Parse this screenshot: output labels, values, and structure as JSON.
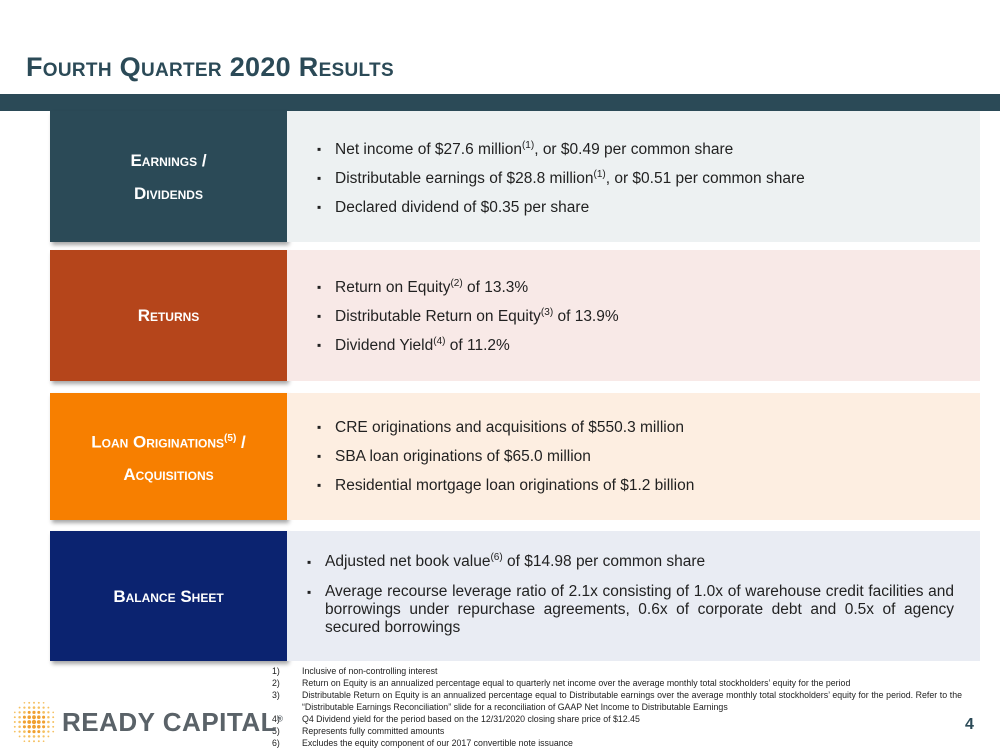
{
  "title": "Fourth Quarter 2020 Results",
  "sections": [
    {
      "label_line1": "Earnings /",
      "label_line2": "Dividends",
      "bullets": [
        {
          "pre": "Net income of $27.6 million",
          "sup": "(1)",
          "post": ", or $0.49 per common share"
        },
        {
          "pre": "Distributable earnings of $28.8 million",
          "sup": "(1)",
          "post": ", or $0.51 per common share"
        },
        {
          "pre": "Declared dividend of $0.35 per share",
          "sup": "",
          "post": ""
        }
      ]
    },
    {
      "label_line1": "Returns",
      "bullets": [
        {
          "pre": "Return on Equity",
          "sup": "(2)",
          "post": " of 13.3%"
        },
        {
          "pre": "Distributable Return on Equity",
          "sup": "(3)",
          "post": " of 13.9%"
        },
        {
          "pre": "Dividend Yield",
          "sup": "(4)",
          "post": " of 11.2%"
        }
      ]
    },
    {
      "label_line1": "Loan Originations",
      "label_sup": "(5)",
      "label_line1_post": " /",
      "label_line2": "Acquisitions",
      "bullets": [
        {
          "pre": "CRE originations and acquisitions of $550.3 million",
          "sup": "",
          "post": ""
        },
        {
          "pre": "SBA loan originations of $65.0 million",
          "sup": "",
          "post": ""
        },
        {
          "pre": "Residential mortgage loan originations of $1.2 billion",
          "sup": "",
          "post": ""
        }
      ]
    },
    {
      "label_line1": "Balance Sheet",
      "bullets": [
        {
          "pre": "Adjusted net book value",
          "sup": "(6)",
          "post": " of $14.98 per common share"
        },
        {
          "pre": "Average recourse leverage ratio of 2.1x consisting of 1.0x of warehouse credit facilities and borrowings under repurchase agreements, 0.6x of corporate debt and 0.5x of agency secured borrowings",
          "sup": "",
          "post": ""
        }
      ]
    }
  ],
  "footnotes": [
    {
      "num": "1)",
      "text": "Inclusive of non-controlling interest"
    },
    {
      "num": "2)",
      "text": "Return on Equity is an annualized percentage equal to quarterly net income over the average monthly total stockholders’ equity for the period"
    },
    {
      "num": "3)",
      "text": "Distributable Return on Equity is an annualized percentage equal to Distributable earnings over the average monthly total stockholders’ equity for the period. Refer to the “Distributable Earnings Reconciliation” slide for a reconciliation of GAAP Net Income to Distributable Earnings"
    },
    {
      "num": "4)",
      "text": "Q4 Dividend yield for the period based on the 12/31/2020 closing share price of $12.45"
    },
    {
      "num": "5)",
      "text": "Represents fully committed amounts"
    },
    {
      "num": "6)",
      "text": "Excludes the equity component of our 2017 convertible note issuance"
    }
  ],
  "logo_text": "READY CAPITAL",
  "logo_mark": "®",
  "page_number": "4",
  "colors": {
    "navy_teal": "#2b4a57",
    "rust": "#b5451b",
    "orange": "#f77f00",
    "navy": "#0b2370"
  }
}
